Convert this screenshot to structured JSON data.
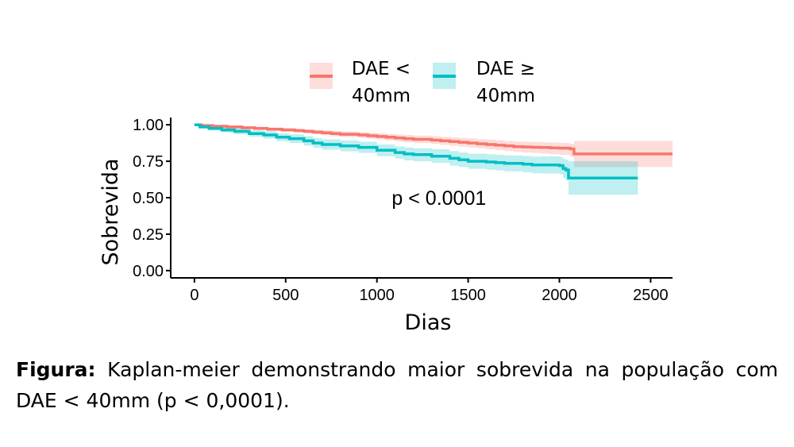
{
  "chart_data": {
    "type": "line",
    "subtype": "kaplan-meier",
    "xlabel": "Dias",
    "ylabel": "Sobrevida",
    "xlim": [
      -130,
      2620
    ],
    "ylim": [
      -0.05,
      1.05
    ],
    "xticks": [
      0,
      500,
      1000,
      1500,
      2000,
      2500
    ],
    "yticks": [
      0.0,
      0.25,
      0.5,
      0.75,
      1.0
    ],
    "ytick_labels": [
      "0.00",
      "0.25",
      "0.50",
      "0.75",
      "1.00"
    ],
    "grid": false,
    "legend_position": "top",
    "annotation": "p < 0.0001",
    "annotation_pos": [
      1340,
      0.5
    ],
    "series": [
      {
        "name": "DAE < 40mm",
        "legend_lines": [
          "DAE <",
          "40mm"
        ],
        "color": "#F8766D",
        "band_color": "#F8766D",
        "x": [
          0,
          40,
          100,
          180,
          260,
          330,
          400,
          480,
          550,
          600,
          650,
          700,
          750,
          800,
          900,
          950,
          1000,
          1050,
          1100,
          1150,
          1200,
          1300,
          1350,
          1400,
          1450,
          1500,
          1550,
          1600,
          1650,
          1700,
          1750,
          1800,
          1850,
          1900,
          1950,
          2000,
          2060,
          2080,
          2620
        ],
        "y": [
          1.0,
          0.995,
          0.99,
          0.985,
          0.98,
          0.975,
          0.97,
          0.965,
          0.96,
          0.955,
          0.95,
          0.945,
          0.94,
          0.935,
          0.93,
          0.925,
          0.92,
          0.915,
          0.91,
          0.905,
          0.9,
          0.895,
          0.89,
          0.885,
          0.88,
          0.875,
          0.87,
          0.865,
          0.86,
          0.855,
          0.85,
          0.848,
          0.846,
          0.844,
          0.842,
          0.84,
          0.835,
          0.8,
          0.8
        ],
        "lower": [
          1.0,
          0.99,
          0.983,
          0.976,
          0.97,
          0.964,
          0.958,
          0.952,
          0.946,
          0.94,
          0.934,
          0.928,
          0.922,
          0.916,
          0.91,
          0.904,
          0.898,
          0.892,
          0.886,
          0.88,
          0.874,
          0.868,
          0.862,
          0.856,
          0.85,
          0.844,
          0.838,
          0.832,
          0.826,
          0.82,
          0.814,
          0.81,
          0.806,
          0.802,
          0.798,
          0.794,
          0.78,
          0.71,
          0.71
        ],
        "upper": [
          1.0,
          1.0,
          0.997,
          0.994,
          0.99,
          0.986,
          0.982,
          0.978,
          0.974,
          0.97,
          0.966,
          0.962,
          0.958,
          0.954,
          0.95,
          0.946,
          0.942,
          0.938,
          0.934,
          0.93,
          0.926,
          0.922,
          0.918,
          0.914,
          0.91,
          0.906,
          0.902,
          0.898,
          0.894,
          0.89,
          0.886,
          0.884,
          0.882,
          0.88,
          0.878,
          0.876,
          0.87,
          0.89,
          0.89
        ]
      },
      {
        "name": "DAE ≥ 40mm",
        "legend_lines": [
          "DAE ≥",
          "40mm"
        ],
        "color": "#00BFC4",
        "band_color": "#00BFC4",
        "x": [
          0,
          30,
          80,
          150,
          220,
          300,
          380,
          450,
          520,
          600,
          650,
          700,
          800,
          900,
          1000,
          1100,
          1150,
          1200,
          1300,
          1400,
          1450,
          1500,
          1600,
          1650,
          1700,
          1800,
          1850,
          1900,
          2000,
          2020,
          2035,
          2050,
          2430
        ],
        "y": [
          1.0,
          0.985,
          0.975,
          0.965,
          0.955,
          0.94,
          0.93,
          0.915,
          0.905,
          0.89,
          0.875,
          0.865,
          0.855,
          0.845,
          0.825,
          0.81,
          0.8,
          0.795,
          0.785,
          0.77,
          0.76,
          0.75,
          0.745,
          0.74,
          0.735,
          0.73,
          0.725,
          0.725,
          0.72,
          0.7,
          0.69,
          0.635,
          0.635
        ],
        "lower": [
          1.0,
          0.975,
          0.962,
          0.948,
          0.935,
          0.918,
          0.905,
          0.888,
          0.876,
          0.858,
          0.842,
          0.83,
          0.818,
          0.806,
          0.785,
          0.768,
          0.756,
          0.75,
          0.738,
          0.72,
          0.71,
          0.698,
          0.692,
          0.686,
          0.68,
          0.674,
          0.668,
          0.666,
          0.66,
          0.635,
          0.62,
          0.52,
          0.52
        ],
        "upper": [
          1.0,
          0.995,
          0.988,
          0.982,
          0.975,
          0.962,
          0.955,
          0.942,
          0.934,
          0.922,
          0.908,
          0.9,
          0.892,
          0.884,
          0.865,
          0.852,
          0.844,
          0.84,
          0.832,
          0.82,
          0.81,
          0.802,
          0.798,
          0.794,
          0.79,
          0.786,
          0.782,
          0.784,
          0.78,
          0.765,
          0.76,
          0.75,
          0.75
        ]
      }
    ]
  },
  "caption": {
    "bold": "Figura:",
    "text": " Kaplan-meier demonstrando maior sobrevida na população com DAE < 40mm (p < 0,0001)."
  }
}
